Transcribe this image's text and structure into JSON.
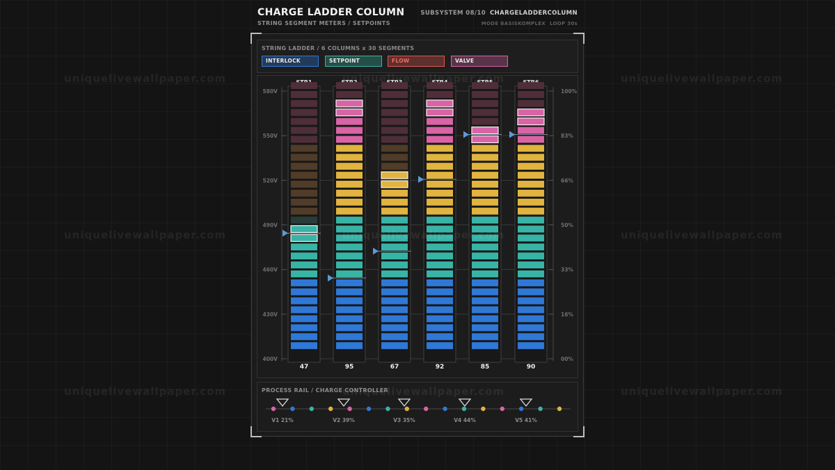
{
  "header": {
    "title": "CHARGE LADDER COLUMN",
    "subtitle": "STRING SEGMENT METERS / SETPOINTS",
    "subsystem": "SUBSYSTEM 08/10",
    "system_id": "CHARGELADDERCOLUMN",
    "mode": "MODE BASISKOMPLEX",
    "loop": "LOOP 30s"
  },
  "legend": {
    "title": "STRING LADDER / 6 COLUMNS x 30 SEGMENTS",
    "chips": [
      {
        "label": "INTERLOCK",
        "color": "#2f78d6"
      },
      {
        "label": "SETPOINT",
        "color": "#38b4a6"
      },
      {
        "label": "FLOW",
        "color": "#e0574f"
      },
      {
        "label": "VALVE",
        "color": "#d864a6"
      }
    ]
  },
  "chart_data": {
    "type": "bar",
    "segments_per_column": 30,
    "zones": [
      {
        "from": 1,
        "to": 8,
        "color": "#2f78d6"
      },
      {
        "from": 9,
        "to": 15,
        "color": "#38b4a6"
      },
      {
        "from": 16,
        "to": 23,
        "color": "#e1b43f"
      },
      {
        "from": 24,
        "to": 30,
        "color": "#d864a6"
      }
    ],
    "left_axis_ticks": [
      "580V",
      "550V",
      "520V",
      "490V",
      "460V",
      "430V",
      "400V"
    ],
    "right_axis_ticks": [
      "100%",
      "83%",
      "66%",
      "50%",
      "33%",
      "16%",
      "00%"
    ],
    "columns": [
      {
        "name": "STR1",
        "value": 47,
        "lit": 14,
        "outlined": [
          13,
          14
        ],
        "setpoint": 13.5
      },
      {
        "name": "STR2",
        "value": 95,
        "lit": 28,
        "outlined": [
          27,
          28
        ],
        "setpoint": 8.5
      },
      {
        "name": "STR3",
        "value": 67,
        "lit": 20,
        "outlined": [
          19,
          20
        ],
        "setpoint": 11.5
      },
      {
        "name": "STR4",
        "value": 92,
        "lit": 28,
        "outlined": [
          27,
          28
        ],
        "setpoint": 19.5
      },
      {
        "name": "STR5",
        "value": 85,
        "lit": 25,
        "outlined": [
          24,
          25
        ],
        "setpoint": 24.5
      },
      {
        "name": "STR6",
        "value": 90,
        "lit": 27,
        "outlined": [
          26,
          27
        ],
        "setpoint": 24.5
      }
    ]
  },
  "rail": {
    "title": "PROCESS RAIL / CHARGE CONTROLLER",
    "node_colors": [
      "#d864a6",
      "#2f78d6",
      "#38b4a6",
      "#e1b43f"
    ],
    "valves": [
      {
        "label": "V1 21%"
      },
      {
        "label": "V2 39%"
      },
      {
        "label": "V3 35%"
      },
      {
        "label": "V4 44%"
      },
      {
        "label": "V5 41%"
      }
    ]
  },
  "watermark": "uniquelivewallpaper.com"
}
